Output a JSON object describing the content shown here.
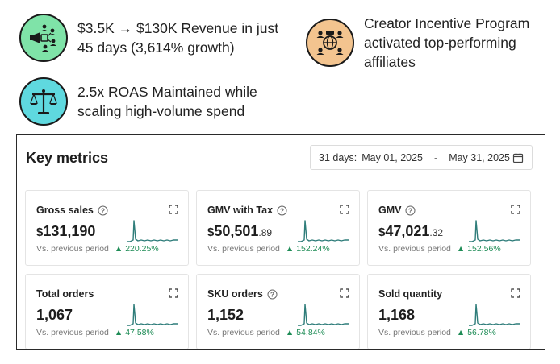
{
  "highlights": [
    {
      "icon": "megaphone-people-icon",
      "bg": "#7fe3a8",
      "text": "$3.5K → $130K Revenue in just 45 days (3,614% growth)"
    },
    {
      "icon": "people-network-icon",
      "bg": "#f3c48f",
      "text": "Creator Incentive Program activated top-performing affiliates"
    },
    {
      "icon": "balance-scale-icon",
      "bg": "#5fd9df",
      "text": "2.5x ROAS Maintained while scaling high-volume spend"
    }
  ],
  "panel": {
    "title": "Key metrics",
    "date_range": {
      "label": "31 days:",
      "start": "May 01, 2025",
      "separator": "-",
      "end": "May 31, 2025"
    }
  },
  "compare_label": "Vs. previous period",
  "accent_color": "#2f7d7a",
  "positive_color": "#1e8c56",
  "metrics": [
    {
      "title": "Gross sales",
      "has_info": true,
      "prefix": "$",
      "value": "131,190",
      "decimal": "",
      "delta": "220.25%"
    },
    {
      "title": "GMV with Tax",
      "has_info": true,
      "prefix": "$",
      "value": "50,501",
      "decimal": ".89",
      "delta": "152.24%"
    },
    {
      "title": "GMV",
      "has_info": true,
      "prefix": "$",
      "value": "47,021",
      "decimal": ".32",
      "delta": "152.56%"
    },
    {
      "title": "Total orders",
      "has_info": false,
      "prefix": "",
      "value": "1,067",
      "decimal": "",
      "delta": "47.58%"
    },
    {
      "title": "SKU orders",
      "has_info": true,
      "prefix": "",
      "value": "1,152",
      "decimal": "",
      "delta": "54.84%"
    },
    {
      "title": "Sold quantity",
      "has_info": false,
      "prefix": "",
      "value": "1,168",
      "decimal": "",
      "delta": "56.78%"
    }
  ]
}
